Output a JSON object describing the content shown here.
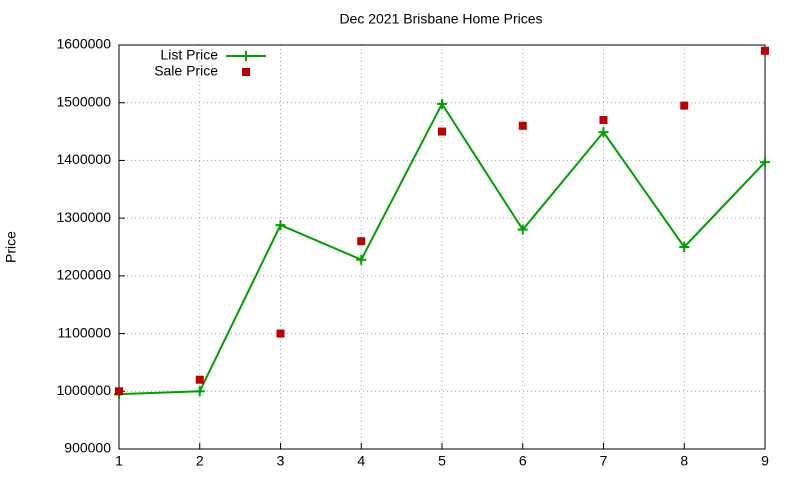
{
  "chart_data": {
    "type": "line",
    "title": "Dec 2021 Brisbane Home Prices",
    "y_label": "Price",
    "x": [
      1,
      2,
      3,
      4,
      5,
      6,
      7,
      8,
      9
    ],
    "series": [
      {
        "name": "List Price",
        "color": "#00a000",
        "style": "linespoints",
        "values": [
          995000,
          1000000,
          1288000,
          1228000,
          1498000,
          1280000,
          1449000,
          1250000,
          1397000
        ]
      },
      {
        "name": "Sale Price",
        "color": "#c00000",
        "style": "points",
        "values": [
          1000000,
          1020000,
          1100000,
          1260000,
          1450000,
          1460000,
          1470000,
          1495000,
          1590000
        ]
      }
    ],
    "xlim": [
      1,
      9
    ],
    "xticks": [
      1,
      2,
      3,
      4,
      5,
      6,
      7,
      8,
      9
    ],
    "ylim": [
      900000,
      1600000
    ],
    "yticks": [
      900000,
      1000000,
      1100000,
      1200000,
      1300000,
      1400000,
      1500000,
      1600000
    ],
    "grid": true,
    "legend": "top-left"
  }
}
